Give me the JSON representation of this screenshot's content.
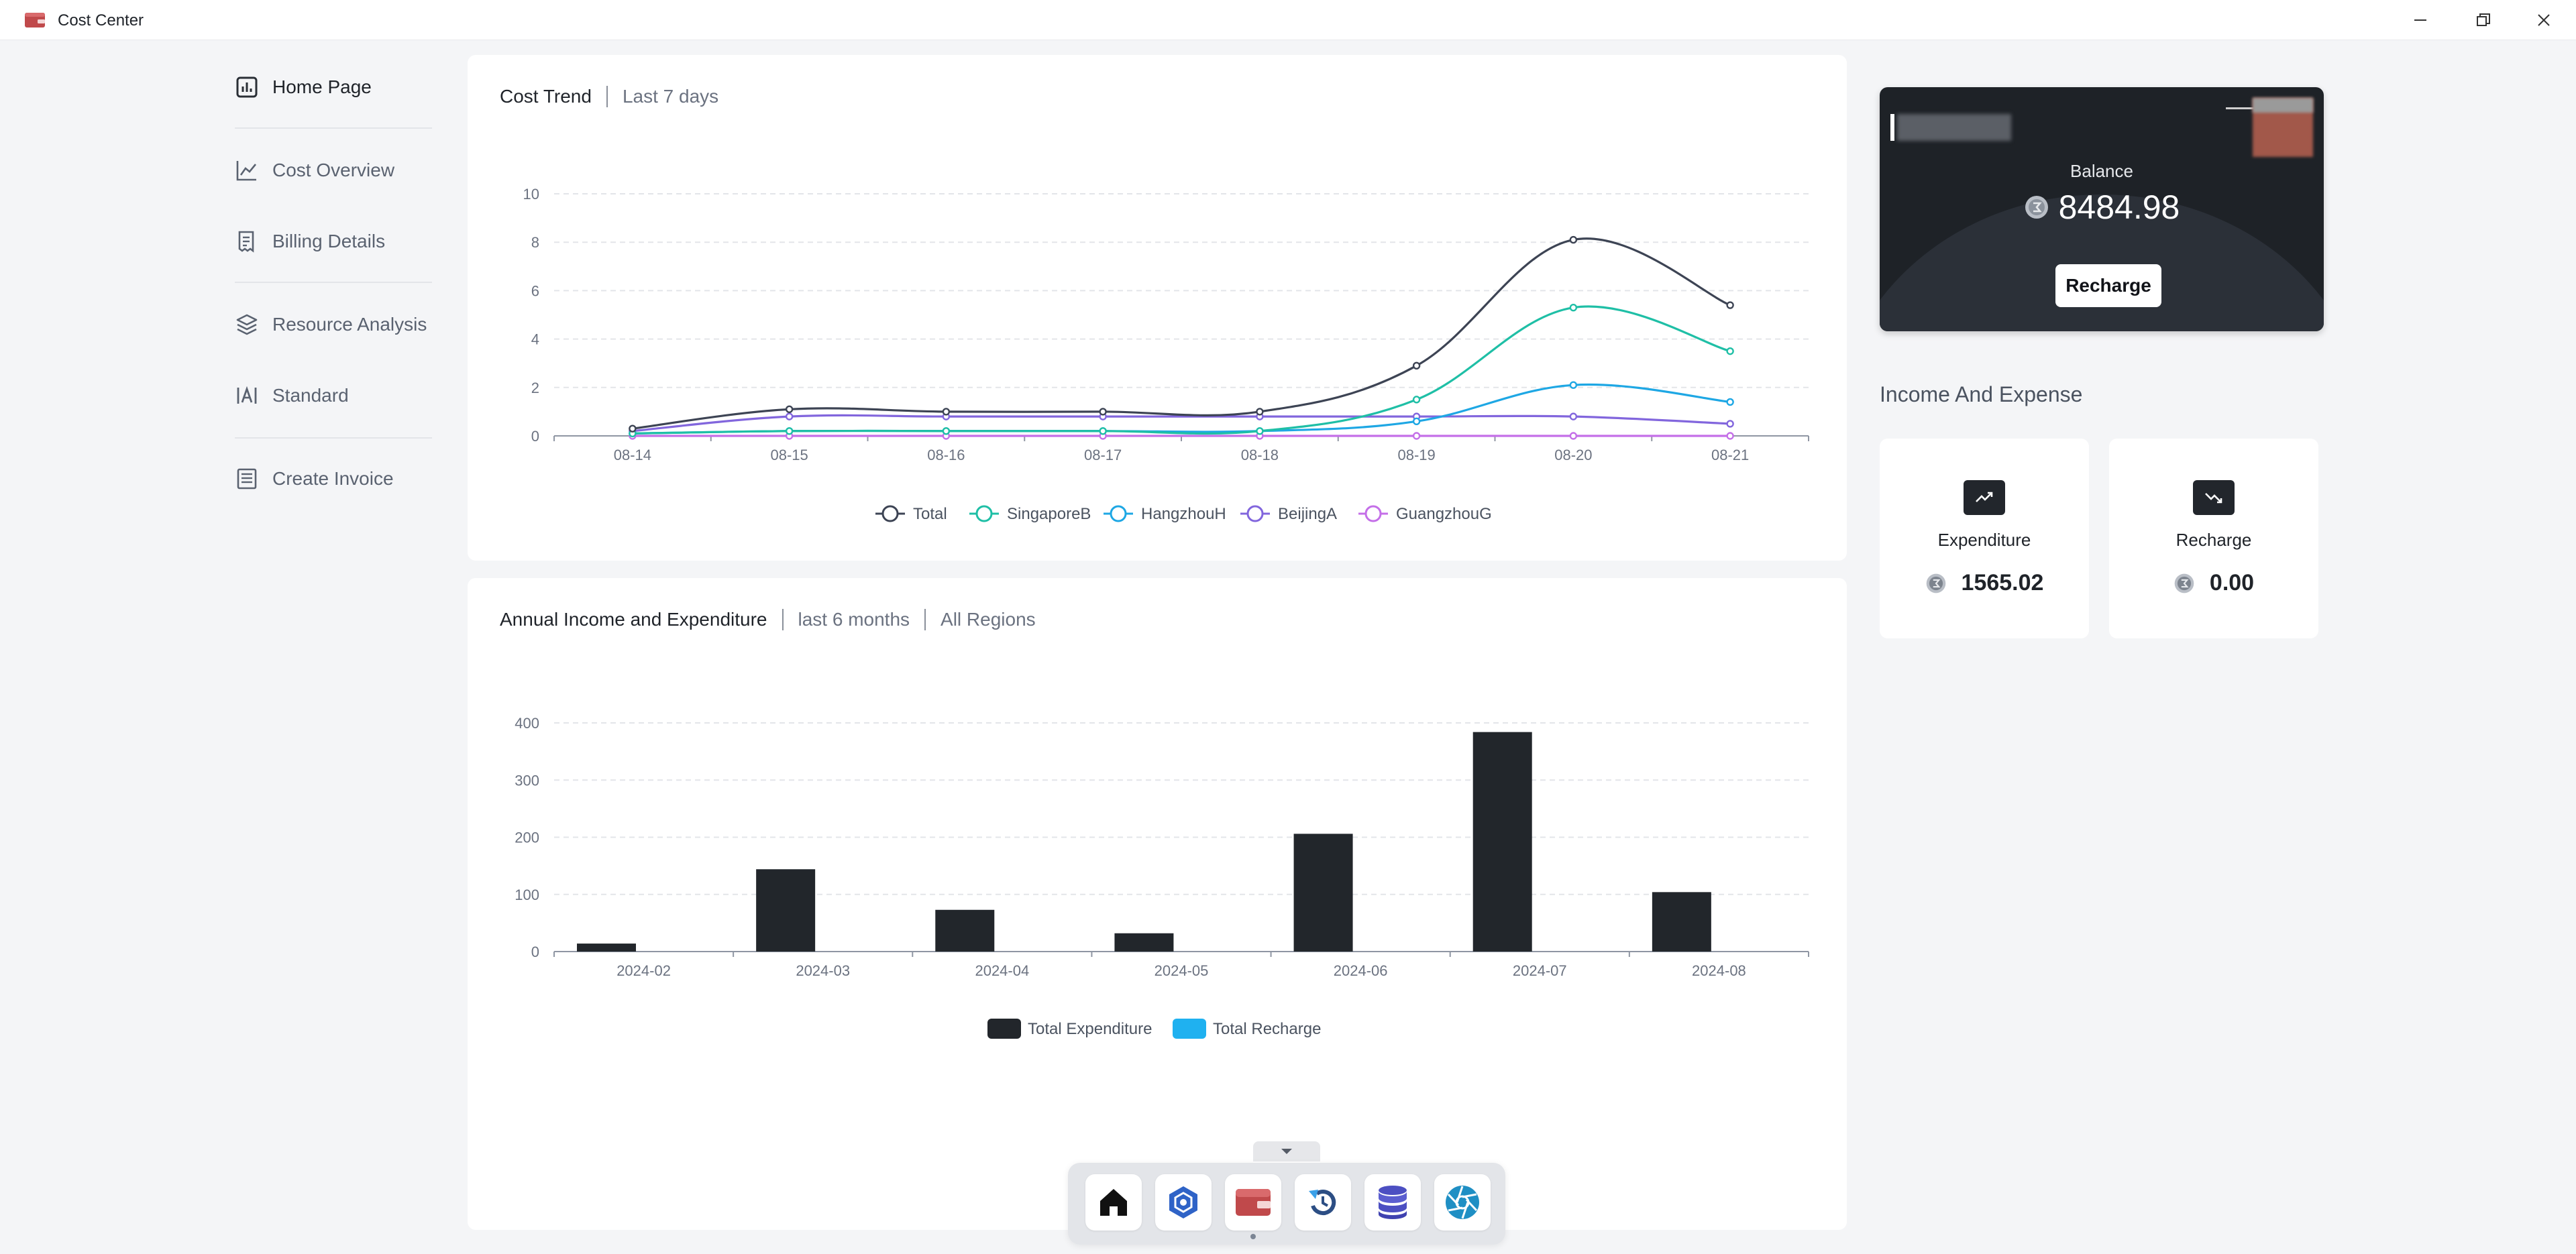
{
  "window": {
    "title": "Cost Center"
  },
  "sidebar": {
    "items": [
      {
        "label": "Home Page",
        "icon": "bar-chart-icon",
        "active": true
      },
      {
        "label": "Cost Overview",
        "icon": "line-chart-icon"
      },
      {
        "label": "Billing Details",
        "icon": "receipt-icon"
      },
      {
        "label": "Resource Analysis",
        "icon": "layers-icon"
      },
      {
        "label": "Standard",
        "icon": "text-frame-icon"
      },
      {
        "label": "Create Invoice",
        "icon": "invoice-icon"
      }
    ]
  },
  "cost_trend": {
    "title": "Cost Trend",
    "subtitle": "Last 7 days"
  },
  "annual": {
    "title": "Annual Income and Expenditure",
    "range": "last 6 months",
    "region": "All Regions"
  },
  "balance": {
    "label": "Balance",
    "value": "8484.98",
    "button": "Recharge"
  },
  "income_expense": {
    "title": "Income And Expense",
    "expenditure": {
      "label": "Expenditure",
      "value": "1565.02"
    },
    "recharge": {
      "label": "Recharge",
      "value": "0.00"
    }
  },
  "colors": {
    "total": "#3d4454",
    "singapore": "#1fbfa6",
    "hangzhou": "#1ea7e4",
    "beijing": "#8266dd",
    "guangzhou": "#c46fe8",
    "expenditure": "#22262b",
    "recharge": "#1fb1f0"
  },
  "dock": {
    "items": [
      "home-icon",
      "hexagon-icon",
      "wallet-icon",
      "refresh-icon",
      "database-icon",
      "aperture-icon"
    ]
  },
  "chart_data": [
    {
      "type": "line",
      "x": [
        "08-14",
        "08-15",
        "08-16",
        "08-17",
        "08-18",
        "08-19",
        "08-20",
        "08-21"
      ],
      "ylim": [
        0,
        10
      ],
      "yticks": [
        0,
        2,
        4,
        6,
        8,
        10
      ],
      "legend_position": "bottom",
      "grid": true,
      "series": [
        {
          "name": "Total",
          "values": [
            0.3,
            1.1,
            1.0,
            1.0,
            1.0,
            2.9,
            8.1,
            5.4
          ]
        },
        {
          "name": "SingaporeB",
          "values": [
            0.1,
            0.2,
            0.2,
            0.2,
            0.2,
            1.5,
            5.3,
            3.5
          ]
        },
        {
          "name": "HangzhouH",
          "values": [
            0.1,
            0.2,
            0.2,
            0.2,
            0.2,
            0.6,
            2.1,
            1.4
          ]
        },
        {
          "name": "BeijingA",
          "values": [
            0.2,
            0.8,
            0.8,
            0.8,
            0.8,
            0.8,
            0.8,
            0.5
          ]
        },
        {
          "name": "GuangzhouG",
          "values": [
            0.0,
            0.0,
            0.0,
            0.0,
            0.0,
            0.0,
            0.0,
            0.0
          ]
        }
      ]
    },
    {
      "type": "bar",
      "categories": [
        "2024-02",
        "2024-03",
        "2024-04",
        "2024-05",
        "2024-06",
        "2024-07",
        "2024-08"
      ],
      "ylim": [
        0,
        400
      ],
      "yticks": [
        0,
        100,
        200,
        300,
        400
      ],
      "legend_position": "bottom",
      "grid": true,
      "series": [
        {
          "name": "Total Expenditure",
          "values": [
            14,
            144,
            73,
            32,
            206,
            384,
            104
          ]
        },
        {
          "name": "Total Recharge",
          "values": [
            0,
            0,
            0,
            0,
            0,
            0,
            0
          ]
        }
      ]
    }
  ]
}
